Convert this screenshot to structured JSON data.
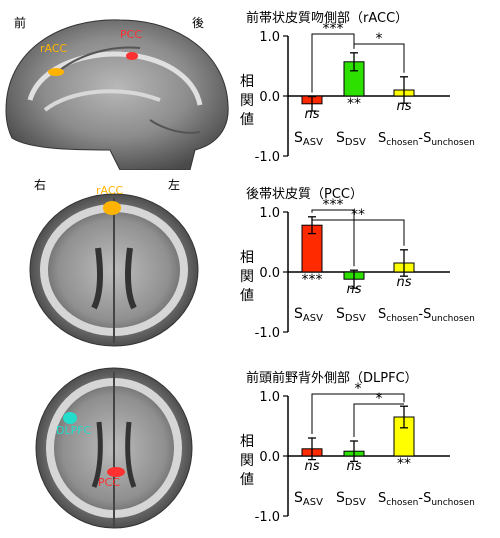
{
  "brains": {
    "sagittal": {
      "anterior": "前",
      "posterior": "後",
      "roi1": "rACC",
      "roi2": "PCC"
    },
    "axial1": {
      "right": "右",
      "left": "左",
      "roi": "rACC"
    },
    "axial2": {
      "roi1": "DLPFC",
      "roi2": "PCC"
    }
  },
  "colors": {
    "asv": "#ff2a00",
    "dsv": "#2ee000",
    "chosen": "#ffff00",
    "roi_orange": "#ffb300",
    "roi_red": "#ff3030",
    "roi_cyan": "#22ddcc"
  },
  "chart_data": [
    {
      "type": "bar",
      "title": "前帯状皮質吻側部（rACC）",
      "ylabel": "相関値",
      "ylim": [
        -1.0,
        1.0
      ],
      "yticks": [
        "1.0",
        "0.0",
        "-1.0"
      ],
      "categories": [
        "ASV",
        "DSV",
        "chosen-unchosen"
      ],
      "values": [
        -0.13,
        0.57,
        0.1
      ],
      "errors": [
        0.12,
        0.15,
        0.22
      ],
      "marks": [
        "ns",
        "**",
        "ns"
      ],
      "comparisons": [
        {
          "from": 0,
          "to": 1,
          "label": "***"
        },
        {
          "from": 1,
          "to": 2,
          "label": "*"
        }
      ]
    },
    {
      "type": "bar",
      "title": "後帯状皮質（PCC）",
      "ylabel": "相関値",
      "ylim": [
        -1.0,
        1.0
      ],
      "yticks": [
        "1.0",
        "0.0",
        "-1.0"
      ],
      "categories": [
        "ASV",
        "DSV",
        "chosen-unchosen"
      ],
      "values": [
        0.78,
        -0.12,
        0.15
      ],
      "errors": [
        0.14,
        0.15,
        0.22
      ],
      "marks": [
        "***",
        "ns",
        "ns"
      ],
      "comparisons": [
        {
          "from": 0,
          "to": 1,
          "label": "***"
        },
        {
          "from": 0,
          "to": 2,
          "label": "**"
        }
      ]
    },
    {
      "type": "bar",
      "title": "前頭前野背外側部（DLPFC）",
      "ylabel": "相関値",
      "ylim": [
        -1.0,
        1.0
      ],
      "yticks": [
        "1.0",
        "0.0",
        "-1.0"
      ],
      "categories": [
        "ASV",
        "DSV",
        "chosen-unchosen"
      ],
      "values": [
        0.12,
        0.08,
        0.65
      ],
      "errors": [
        0.18,
        0.17,
        0.18
      ],
      "marks": [
        "ns",
        "ns",
        "**"
      ],
      "comparisons": [
        {
          "from": 0,
          "to": 2,
          "label": "*"
        },
        {
          "from": 1,
          "to": 2,
          "label": "*"
        }
      ]
    }
  ],
  "sublabels": {
    "asv": {
      "main": "S",
      "sub": "ASV"
    },
    "dsv": {
      "main": "S",
      "sub": "DSV"
    },
    "chosen": {
      "main1": "S",
      "sub1": "chosen",
      "dash": "-",
      "main2": "S",
      "sub2": "unchosen"
    }
  }
}
